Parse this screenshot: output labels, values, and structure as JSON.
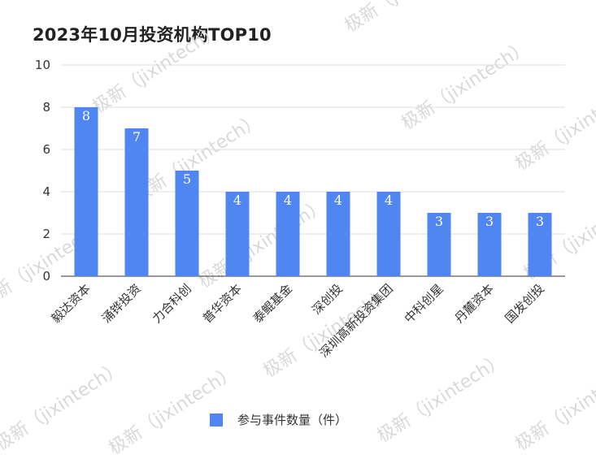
{
  "chart_data": {
    "type": "bar",
    "title": "2023年10月投资机构TOP10",
    "categories": [
      "毅达资本",
      "涌铧投资",
      "力合科创",
      "普华资本",
      "泰鲲基金",
      "深创投",
      "深圳高新投资集团",
      "中科创星",
      "丹麓资本",
      "国发创投"
    ],
    "series": [
      {
        "name": "参与事件数量（件）",
        "values": [
          8,
          7,
          5,
          4,
          4,
          4,
          4,
          3,
          3,
          3
        ],
        "color": "#5086f1"
      }
    ],
    "ylim": [
      0,
      10
    ],
    "yticks": [
      0,
      2,
      4,
      6,
      8,
      10
    ],
    "xlabel": "",
    "ylabel": "",
    "grid": true,
    "legend_position": "bottom-center",
    "data_labels": true
  },
  "watermark": "极新（jixintech）"
}
